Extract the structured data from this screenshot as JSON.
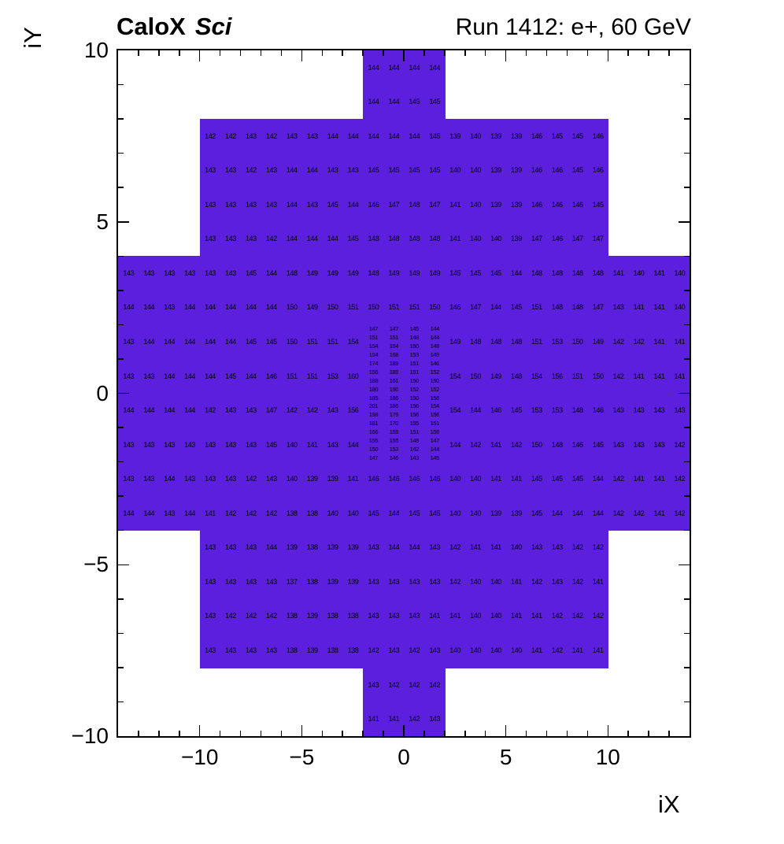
{
  "header": {
    "left_bold": "CaloX",
    "left_italic": "Sci",
    "right": "Run 1412: e+, 60 GeV"
  },
  "chart_data": {
    "type": "heatmap",
    "title": "Run 1412: e+, 60 GeV",
    "xlabel": "iX",
    "ylabel": "iY",
    "xlim": [
      -14,
      14
    ],
    "ylim": [
      -10,
      10
    ],
    "cell_color": "#5b1fdd",
    "x_ticks": {
      "major": [
        -10,
        -5,
        0,
        5,
        10
      ],
      "labels": [
        "−10",
        "−5",
        "0",
        "5",
        "10"
      ],
      "minor_step": 1
    },
    "y_ticks": {
      "major": [
        10,
        5,
        0,
        -5,
        -10
      ],
      "labels": [
        "10",
        "5",
        "0",
        "−5",
        "−10"
      ],
      "minor_step": 1
    },
    "rows": [
      {
        "y": 10,
        "x0": -2,
        "values": [
          144,
          144,
          144,
          144
        ]
      },
      {
        "y": 9,
        "x0": -2,
        "values": [
          144,
          144,
          145,
          145
        ]
      },
      {
        "y": 8,
        "x0": -10,
        "values": [
          142,
          142,
          143,
          142,
          143,
          143,
          144,
          144,
          144,
          144,
          144,
          145,
          139,
          140,
          139,
          139,
          146,
          145,
          145,
          146
        ]
      },
      {
        "y": 7,
        "x0": -10,
        "values": [
          143,
          143,
          142,
          143,
          144,
          144,
          143,
          143,
          145,
          145,
          145,
          145,
          140,
          140,
          139,
          139,
          146,
          146,
          145,
          146
        ]
      },
      {
        "y": 6,
        "x0": -10,
        "values": [
          143,
          143,
          143,
          143,
          144,
          143,
          145,
          144,
          146,
          147,
          148,
          147,
          141,
          140,
          139,
          139,
          146,
          146,
          146,
          145
        ]
      },
      {
        "y": 5,
        "x0": -10,
        "values": [
          143,
          143,
          143,
          142,
          144,
          144,
          144,
          145,
          148,
          148,
          148,
          148,
          141,
          140,
          140,
          139,
          147,
          146,
          147,
          147
        ]
      },
      {
        "y": 4,
        "x0": -14,
        "values": [
          143,
          143,
          143,
          143,
          143,
          143,
          145,
          144,
          148,
          149,
          149,
          149,
          148,
          149,
          149,
          149,
          145,
          145,
          145,
          144,
          148,
          148,
          148,
          148,
          141,
          140,
          141,
          140
        ]
      },
      {
        "y": 3,
        "x0": -14,
        "values": [
          144,
          144,
          143,
          144,
          144,
          144,
          144,
          144,
          150,
          149,
          150,
          151,
          150,
          151,
          151,
          150,
          146,
          147,
          144,
          145,
          151,
          148,
          148,
          147,
          143,
          141,
          141,
          140
        ]
      },
      {
        "y": 2,
        "x0": -14,
        "values": [
          143,
          144,
          144,
          144,
          144,
          144,
          145,
          145,
          150,
          151,
          151,
          154
        ]
      },
      {
        "y": 2,
        "x0": 2,
        "values": [
          149,
          148,
          148,
          148,
          151,
          153,
          150,
          149,
          142,
          142,
          141,
          141
        ]
      },
      {
        "y": 1,
        "x0": -14,
        "values": [
          143,
          143,
          144,
          144,
          144,
          145,
          144,
          146,
          151,
          151,
          153,
          160
        ]
      },
      {
        "y": 1,
        "x0": 2,
        "values": [
          154,
          150,
          149,
          148,
          154,
          156,
          151,
          150,
          142,
          141,
          141,
          141
        ]
      },
      {
        "y": 0,
        "x0": -14,
        "values": [
          144,
          144,
          144,
          144,
          142,
          143,
          143,
          147,
          142,
          142,
          143,
          156
        ]
      },
      {
        "y": 0,
        "x0": 2,
        "values": [
          154,
          144,
          146,
          145,
          153,
          153,
          148,
          146,
          143,
          143,
          143,
          143
        ]
      },
      {
        "y": -1,
        "x0": -14,
        "values": [
          143,
          143,
          143,
          143,
          143,
          143,
          143,
          145,
          140,
          141,
          143,
          144
        ]
      },
      {
        "y": -1,
        "x0": 2,
        "values": [
          144,
          142,
          141,
          142,
          150,
          148,
          146,
          145,
          143,
          143,
          143,
          142
        ]
      },
      {
        "y": -2,
        "x0": -14,
        "values": [
          143,
          143,
          144,
          143,
          143,
          143,
          142,
          143,
          140,
          139,
          139,
          141,
          146,
          146,
          146,
          146,
          140,
          140,
          141,
          141,
          145,
          145,
          145,
          144,
          142,
          141,
          141,
          142
        ]
      },
      {
        "y": -3,
        "x0": -14,
        "values": [
          144,
          144,
          143,
          144,
          141,
          142,
          142,
          142,
          138,
          138,
          140,
          140,
          145,
          144,
          145,
          145,
          140,
          140,
          139,
          139,
          145,
          144,
          144,
          144,
          142,
          142,
          141,
          142
        ]
      },
      {
        "y": -4,
        "x0": -10,
        "values": [
          143,
          143,
          143,
          144,
          139,
          138,
          139,
          139,
          143,
          144,
          144,
          143,
          142,
          141,
          141,
          140,
          143,
          143,
          142,
          142
        ]
      },
      {
        "y": -5,
        "x0": -10,
        "values": [
          143,
          143,
          143,
          143,
          137,
          138,
          139,
          139,
          143,
          143,
          143,
          143,
          142,
          140,
          140,
          141,
          142,
          143,
          142,
          141
        ]
      },
      {
        "y": -6,
        "x0": -10,
        "values": [
          143,
          142,
          142,
          142,
          138,
          139,
          138,
          138,
          143,
          143,
          143,
          141,
          141,
          140,
          140,
          141,
          141,
          142,
          142,
          142
        ]
      },
      {
        "y": -7,
        "x0": -10,
        "values": [
          143,
          143,
          143,
          143,
          138,
          139,
          138,
          138,
          142,
          143,
          142,
          143,
          140,
          140,
          140,
          140,
          141,
          142,
          141,
          141
        ]
      },
      {
        "y": -8,
        "x0": -2,
        "values": [
          143,
          142,
          142,
          142
        ]
      },
      {
        "y": -9,
        "x0": -2,
        "values": [
          141,
          141,
          142,
          143
        ]
      },
      {
        "y": 2,
        "x0": -2,
        "ch": 0.25,
        "values": [
          147,
          147,
          145,
          144
        ]
      },
      {
        "y": 1.75,
        "x0": -2,
        "ch": 0.25,
        "values": [
          151,
          151,
          148,
          144
        ]
      },
      {
        "y": 1.5,
        "x0": -2,
        "ch": 0.25,
        "values": [
          154,
          164,
          150,
          148
        ]
      },
      {
        "y": 1.25,
        "x0": -2,
        "ch": 0.25,
        "values": [
          154,
          168,
          153,
          149
        ]
      },
      {
        "y": 1,
        "x0": -2,
        "ch": 0.25,
        "values": [
          174,
          189,
          151,
          146
        ]
      },
      {
        "y": 0.75,
        "x0": -2,
        "ch": 0.25,
        "values": [
          156,
          189,
          151,
          152
        ]
      },
      {
        "y": 0.5,
        "x0": -2,
        "ch": 0.25,
        "values": [
          188,
          161,
          150,
          150
        ]
      },
      {
        "y": 0.25,
        "x0": -2,
        "ch": 0.25,
        "values": [
          180,
          190,
          152,
          152
        ]
      },
      {
        "y": 0,
        "x0": -2,
        "ch": 0.25,
        "values": [
          185,
          186,
          150,
          158
        ]
      },
      {
        "y": -0.25,
        "x0": -2,
        "ch": 0.25,
        "values": [
          201,
          186,
          156,
          154
        ]
      },
      {
        "y": -0.5,
        "x0": -2,
        "ch": 0.25,
        "values": [
          198,
          179,
          156,
          156
        ]
      },
      {
        "y": -0.75,
        "x0": -2,
        "ch": 0.25,
        "values": [
          181,
          170,
          155,
          151
        ]
      },
      {
        "y": -1,
        "x0": -2,
        "ch": 0.25,
        "values": [
          166,
          159,
          151,
          156
        ]
      },
      {
        "y": -1.25,
        "x0": -2,
        "ch": 0.25,
        "values": [
          155,
          155,
          148,
          147
        ]
      },
      {
        "y": -1.5,
        "x0": -2,
        "ch": 0.25,
        "values": [
          150,
          153,
          142,
          144
        ]
      },
      {
        "y": -1.75,
        "x0": -2,
        "ch": 0.25,
        "values": [
          147,
          146,
          143,
          145
        ]
      }
    ]
  }
}
